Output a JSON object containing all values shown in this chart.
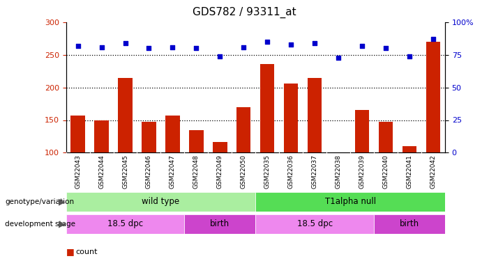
{
  "title": "GDS782 / 93311_at",
  "samples": [
    "GSM22043",
    "GSM22044",
    "GSM22045",
    "GSM22046",
    "GSM22047",
    "GSM22048",
    "GSM22049",
    "GSM22050",
    "GSM22035",
    "GSM22036",
    "GSM22037",
    "GSM22038",
    "GSM22039",
    "GSM22040",
    "GSM22041",
    "GSM22042"
  ],
  "counts": [
    157,
    150,
    215,
    147,
    157,
    135,
    116,
    170,
    236,
    206,
    215,
    95,
    166,
    147,
    110,
    270
  ],
  "percentiles_pct": [
    82,
    81,
    84,
    80,
    81,
    80,
    74,
    81,
    85,
    83,
    84,
    73,
    82,
    80,
    74,
    87
  ],
  "ylim_left": [
    100,
    300
  ],
  "ylim_right": [
    0,
    100
  ],
  "yticks_left": [
    100,
    150,
    200,
    250,
    300
  ],
  "yticks_right": [
    0,
    25,
    50,
    75,
    100
  ],
  "yticklabels_right": [
    "0",
    "25",
    "50",
    "75",
    "100%"
  ],
  "bar_color": "#cc2200",
  "dot_color": "#0000cc",
  "bar_bottom": 100,
  "genotype_groups": [
    {
      "label": "wild type",
      "start": 0,
      "end": 8,
      "color": "#aaeea0"
    },
    {
      "label": "T1alpha null",
      "start": 8,
      "end": 16,
      "color": "#55dd55"
    }
  ],
  "stage_groups": [
    {
      "label": "18.5 dpc",
      "start": 0,
      "end": 5,
      "color": "#ee88ee"
    },
    {
      "label": "birth",
      "start": 5,
      "end": 8,
      "color": "#cc44cc"
    },
    {
      "label": "18.5 dpc",
      "start": 8,
      "end": 13,
      "color": "#ee88ee"
    },
    {
      "label": "birth",
      "start": 13,
      "end": 16,
      "color": "#cc44cc"
    }
  ],
  "grid_dotted_vals": [
    150,
    200,
    250
  ],
  "tick_bg_color": "#c8c8c8"
}
